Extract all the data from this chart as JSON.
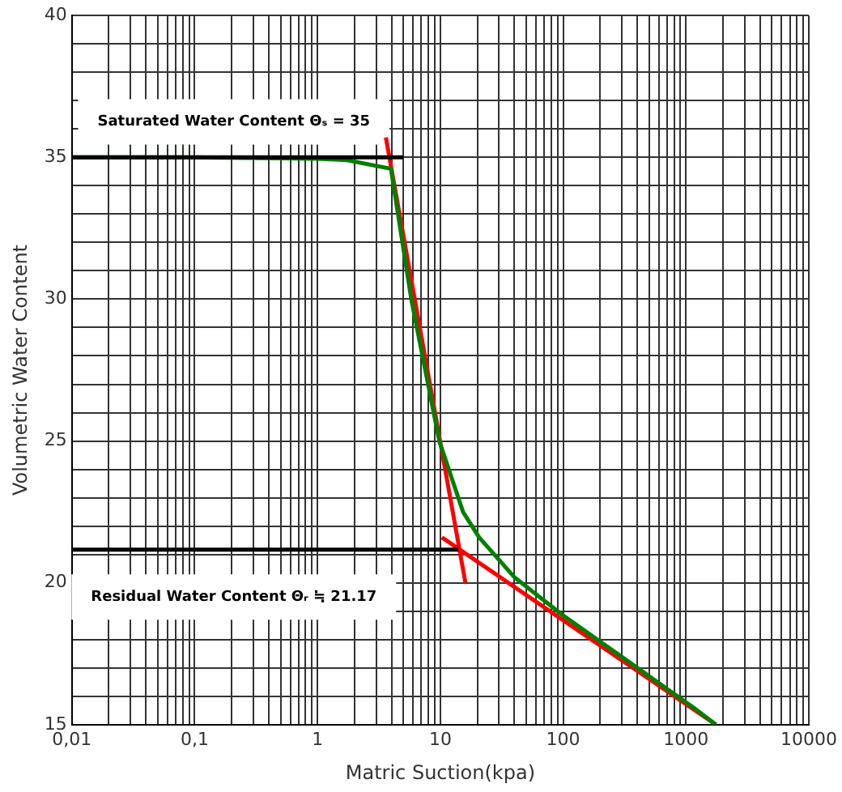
{
  "chart_data": {
    "type": "line",
    "xlabel": "Matric Suction(kpa)",
    "ylabel": "Volumetric Water Content",
    "log": "x",
    "xlim": [
      0.01,
      10000
    ],
    "ylim": [
      15,
      40
    ],
    "xticks": [
      {
        "value": 0.01,
        "label": "0,01"
      },
      {
        "value": 0.02,
        "label": null
      },
      {
        "value": 0.03,
        "label": null
      },
      {
        "value": 0.04,
        "label": null
      },
      {
        "value": 0.05,
        "label": null
      },
      {
        "value": 0.06,
        "label": null
      },
      {
        "value": 0.07,
        "label": null
      },
      {
        "value": 0.08,
        "label": null
      },
      {
        "value": 0.09,
        "label": null
      },
      {
        "value": 0.1,
        "label": "0,1"
      },
      {
        "value": 0.2,
        "label": null
      },
      {
        "value": 0.3,
        "label": null
      },
      {
        "value": 0.4,
        "label": null
      },
      {
        "value": 0.5,
        "label": null
      },
      {
        "value": 0.6,
        "label": null
      },
      {
        "value": 0.7,
        "label": null
      },
      {
        "value": 0.8,
        "label": null
      },
      {
        "value": 0.9,
        "label": null
      },
      1,
      {
        "value": 2,
        "label": null
      },
      {
        "value": 3,
        "label": null
      },
      {
        "value": 4,
        "label": null
      },
      {
        "value": 5,
        "label": null
      },
      {
        "value": 6,
        "label": null
      },
      {
        "value": 7,
        "label": null
      },
      {
        "value": 8,
        "label": null
      },
      {
        "value": 9,
        "label": null
      },
      10,
      {
        "value": 20,
        "label": null
      },
      {
        "value": 30,
        "label": null
      },
      {
        "value": 40,
        "label": null
      },
      {
        "value": 50,
        "label": null
      },
      {
        "value": 60,
        "label": null
      },
      {
        "value": 70,
        "label": null
      },
      {
        "value": 80,
        "label": null
      },
      {
        "value": 90,
        "label": null
      },
      100,
      {
        "value": 200,
        "label": null
      },
      {
        "value": 300,
        "label": null
      },
      {
        "value": 400,
        "label": null
      },
      {
        "value": 500,
        "label": null
      },
      {
        "value": 600,
        "label": null
      },
      {
        "value": 700,
        "label": null
      },
      {
        "value": 800,
        "label": null
      },
      {
        "value": 900,
        "label": null
      },
      1000,
      {
        "value": 2000,
        "label": null
      },
      {
        "value": 3000,
        "label": null
      },
      {
        "value": 4000,
        "label": null
      },
      {
        "value": 5000,
        "label": null
      },
      {
        "value": 6000,
        "label": null
      },
      {
        "value": 7000,
        "label": null
      },
      {
        "value": 8000,
        "label": null
      },
      {
        "value": 9000,
        "label": null
      },
      10000
    ],
    "yticks": [
      15,
      {
        "value": 16,
        "label": null
      },
      {
        "value": 17,
        "label": null
      },
      {
        "value": 18,
        "label": null
      },
      {
        "value": 19,
        "label": null
      },
      20,
      {
        "value": 21,
        "label": null
      },
      {
        "value": 22,
        "label": null
      },
      {
        "value": 23,
        "label": null
      },
      {
        "value": 24,
        "label": null
      },
      25,
      {
        "value": 26,
        "label": null
      },
      {
        "value": 27,
        "label": null
      },
      {
        "value": 28,
        "label": null
      },
      {
        "value": 29,
        "label": null
      },
      30,
      {
        "value": 31,
        "label": null
      },
      {
        "value": 32,
        "label": null
      },
      {
        "value": 33,
        "label": null
      },
      {
        "value": 34,
        "label": null
      },
      35,
      {
        "value": 36,
        "label": null
      },
      {
        "value": 37,
        "label": null
      },
      {
        "value": 38,
        "label": null
      },
      {
        "value": 39,
        "label": null
      },
      40
    ],
    "grid": true,
    "legend": false,
    "marker": "none",
    "series": [
      {
        "color": "#000000",
        "x": [
          0.01,
          5
        ],
        "values": [
          35,
          35
        ]
      },
      {
        "color": "#000000",
        "x": [
          0.01,
          14
        ],
        "values": [
          21.17,
          21.17
        ]
      },
      {
        "color": "#008000",
        "x": [
          0.01,
          0.1,
          1,
          1.74,
          3.96,
          5.8,
          9.8,
          15.3,
          20.7,
          40,
          100,
          1150,
          1750
        ],
        "values": [
          35,
          35,
          34.95,
          34.9,
          34.6,
          30,
          25,
          22.5,
          21.6,
          20.2,
          18.85,
          15.6,
          15
        ]
      },
      {
        "color": "#ff0000",
        "x": [
          3.6,
          16
        ],
        "values": [
          35.7,
          20
        ]
      },
      {
        "color": "#ff0000",
        "x": [
          10.3,
          1750
        ],
        "values": [
          21.6,
          15
        ]
      }
    ],
    "annotations": [
      "Saturated Water Content Θₛ = 35",
      "Residual Water Content Θᵣ ≒ 21.17"
    ]
  }
}
